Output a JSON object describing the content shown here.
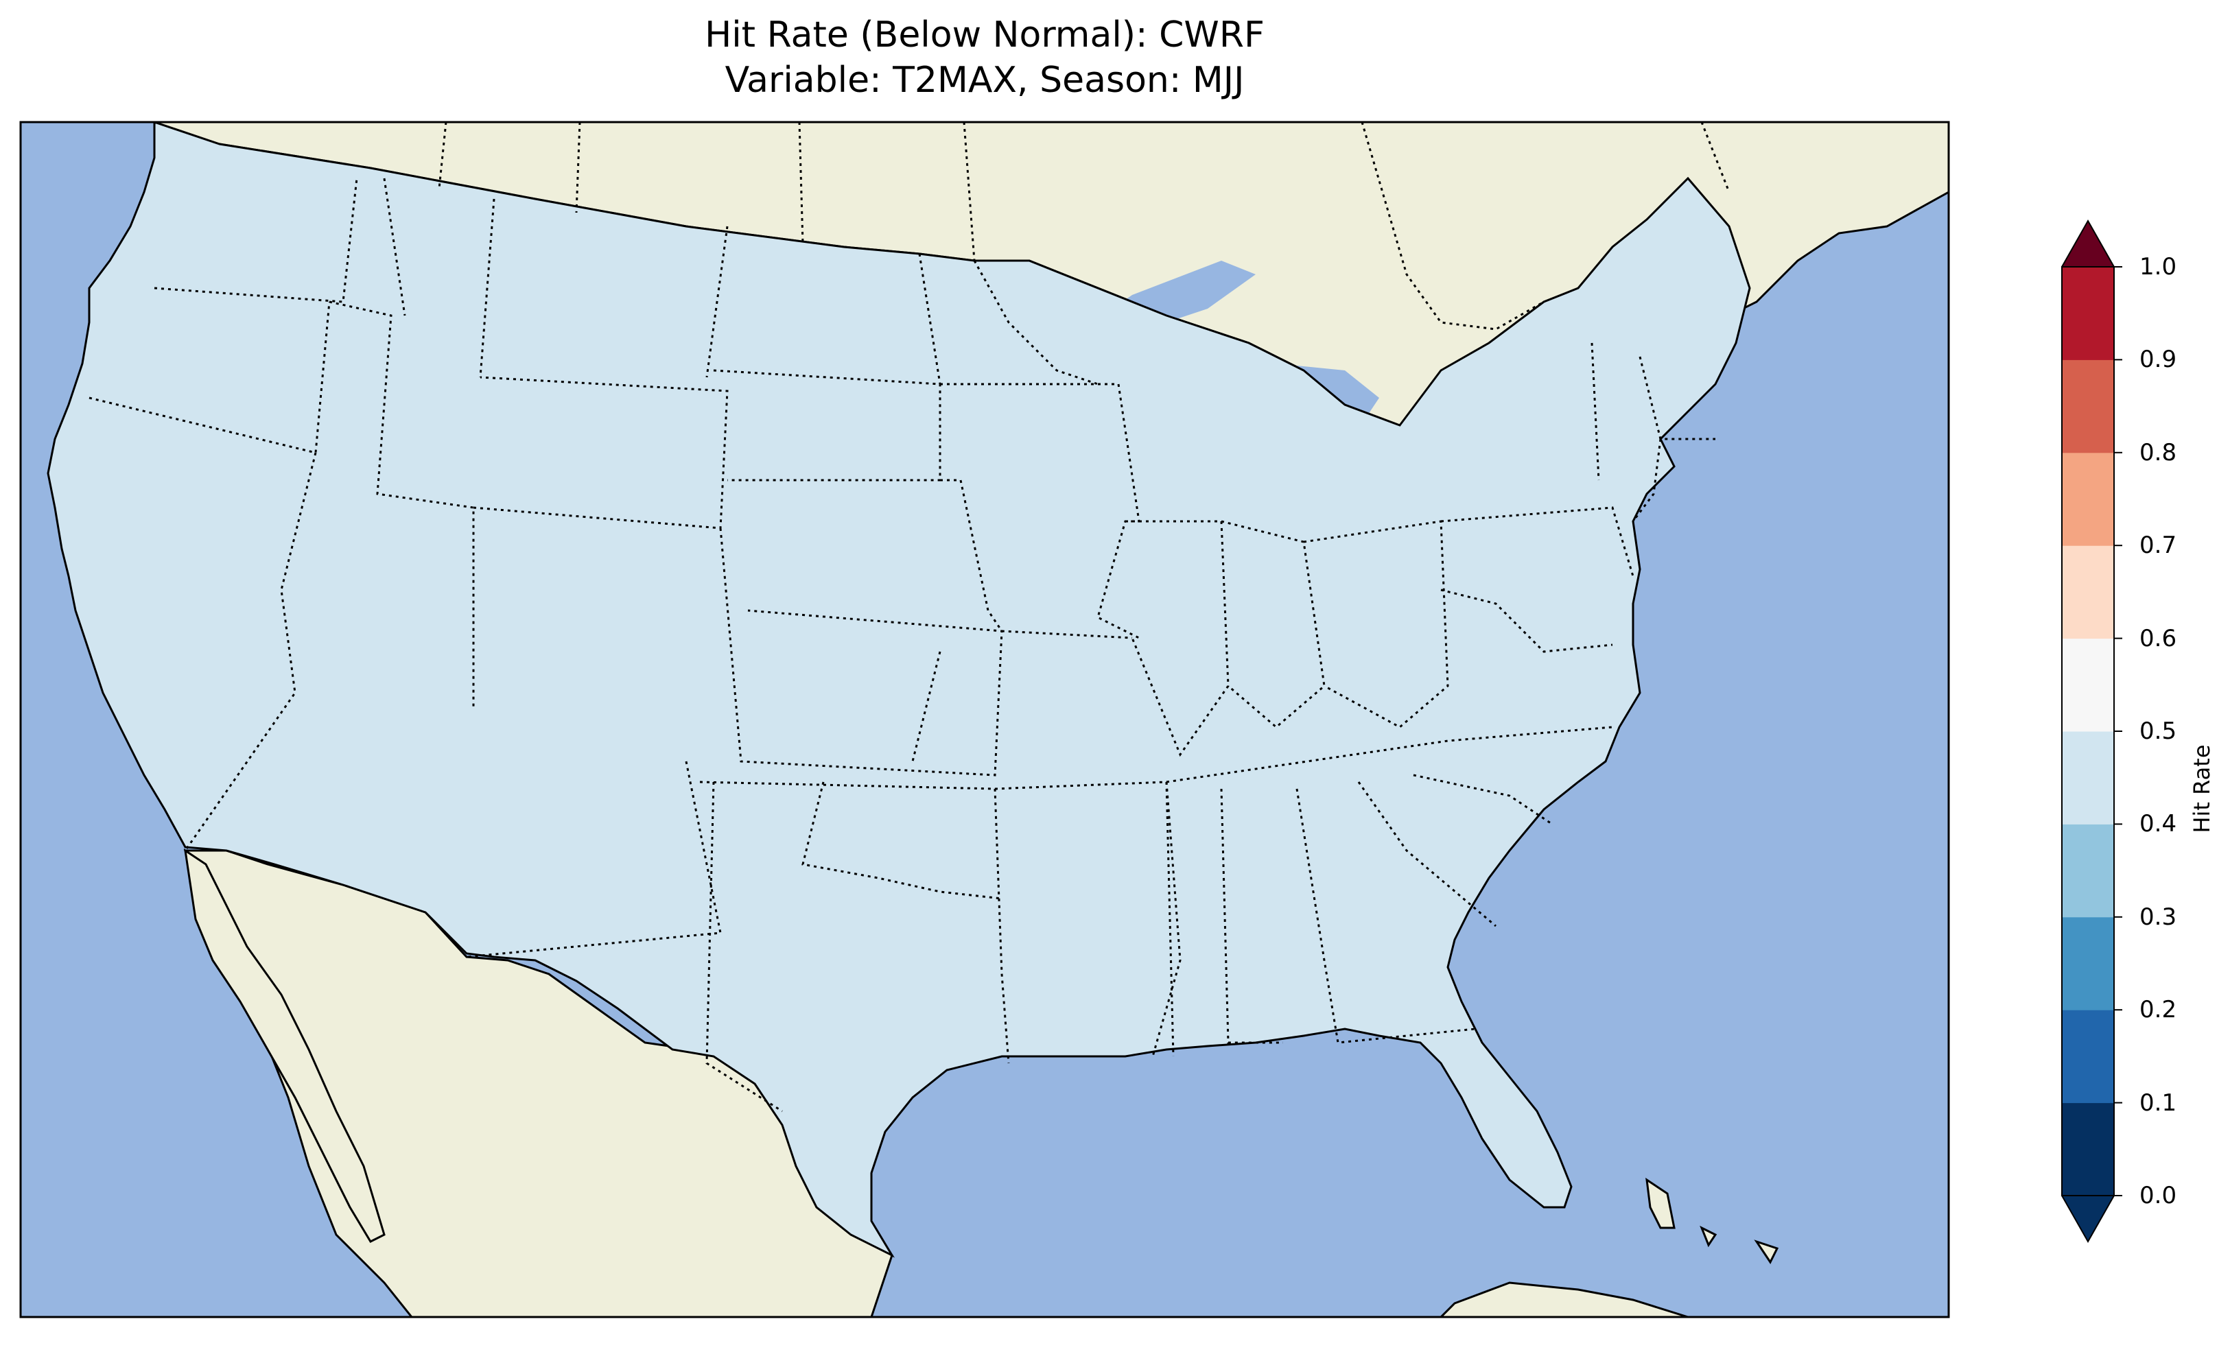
{
  "title": {
    "line1": "Hit Rate (Below Normal): CWRF",
    "line2": "Variable: T2MAX, Season: MJJ"
  },
  "map": {
    "projection": "Lambert conformal (CONUS)",
    "colors": {
      "ocean": "#97b6e1",
      "land_outside": "#efefdb",
      "state_border": "#000000",
      "coast": "#000000"
    }
  },
  "colorbar": {
    "label": "Hit Rate",
    "ticks": [
      "0.0",
      "0.1",
      "0.2",
      "0.3",
      "0.4",
      "0.5",
      "0.6",
      "0.7",
      "0.8",
      "0.9",
      "1.0"
    ],
    "colors": [
      "#053061",
      "#2166ac",
      "#4393c3",
      "#92c5de",
      "#d1e5f0",
      "#f7f7f7",
      "#fddbc7",
      "#f4a582",
      "#d6604d",
      "#b2182b",
      "#67001f"
    ],
    "extend": "both"
  }
}
